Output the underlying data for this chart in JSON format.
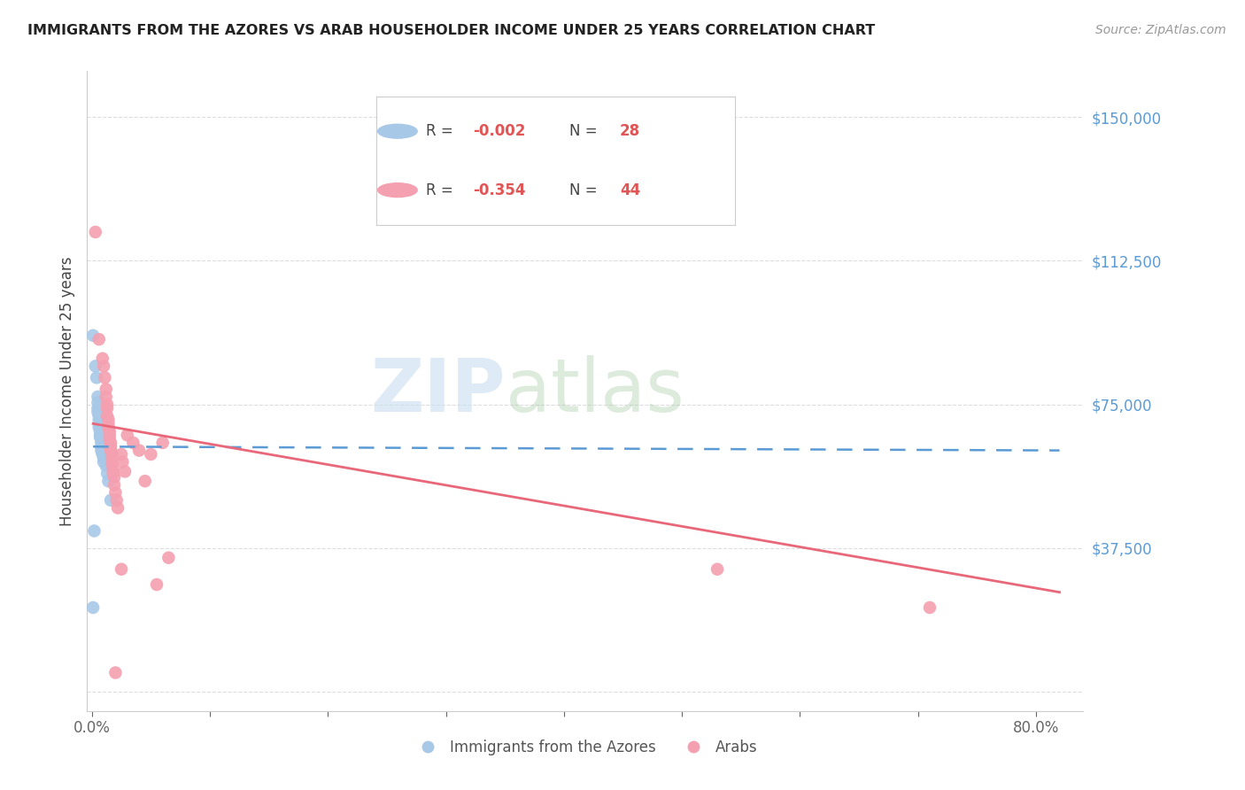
{
  "title": "IMMIGRANTS FROM THE AZORES VS ARAB HOUSEHOLDER INCOME UNDER 25 YEARS CORRELATION CHART",
  "source": "Source: ZipAtlas.com",
  "ylabel": "Householder Income Under 25 years",
  "ytick_values": [
    0,
    37500,
    75000,
    112500,
    150000
  ],
  "ytick_labels": [
    "",
    "$37,500",
    "$75,000",
    "$112,500",
    "$150,000"
  ],
  "ylim": [
    -5000,
    162000
  ],
  "xlim": [
    -0.004,
    0.84
  ],
  "azores_color": "#a8c8e8",
  "arab_color": "#f4a0b0",
  "azores_line_color": "#5b9bd5",
  "arab_line_color": "#e8687a",
  "grid_color": "#dddddd",
  "watermark_zip": "ZIP",
  "watermark_atlas": "atlas",
  "azores_points": [
    [
      0.001,
      93000
    ],
    [
      0.003,
      85000
    ],
    [
      0.004,
      82000
    ],
    [
      0.005,
      77000
    ],
    [
      0.005,
      75500
    ],
    [
      0.005,
      74000
    ],
    [
      0.005,
      73000
    ],
    [
      0.006,
      72000
    ],
    [
      0.006,
      71000
    ],
    [
      0.006,
      70000
    ],
    [
      0.006,
      69000
    ],
    [
      0.007,
      68000
    ],
    [
      0.007,
      67000
    ],
    [
      0.007,
      66500
    ],
    [
      0.008,
      66000
    ],
    [
      0.008,
      65000
    ],
    [
      0.008,
      64000
    ],
    [
      0.008,
      63000
    ],
    [
      0.009,
      62500
    ],
    [
      0.009,
      62000
    ],
    [
      0.01,
      61000
    ],
    [
      0.01,
      60000
    ],
    [
      0.012,
      59000
    ],
    [
      0.013,
      57000
    ],
    [
      0.014,
      55000
    ],
    [
      0.016,
      50000
    ],
    [
      0.002,
      42000
    ],
    [
      0.001,
      22000
    ]
  ],
  "arab_points": [
    [
      0.003,
      120000
    ],
    [
      0.006,
      92000
    ],
    [
      0.009,
      87000
    ],
    [
      0.01,
      85000
    ],
    [
      0.011,
      82000
    ],
    [
      0.012,
      79000
    ],
    [
      0.012,
      77000
    ],
    [
      0.013,
      75000
    ],
    [
      0.013,
      74000
    ],
    [
      0.013,
      72000
    ],
    [
      0.014,
      71000
    ],
    [
      0.014,
      70000
    ],
    [
      0.014,
      69000
    ],
    [
      0.015,
      68000
    ],
    [
      0.015,
      67000
    ],
    [
      0.015,
      66000
    ],
    [
      0.016,
      65000
    ],
    [
      0.016,
      64000
    ],
    [
      0.016,
      63000
    ],
    [
      0.017,
      62000
    ],
    [
      0.017,
      61000
    ],
    [
      0.017,
      59500
    ],
    [
      0.018,
      58000
    ],
    [
      0.018,
      57000
    ],
    [
      0.019,
      56000
    ],
    [
      0.019,
      54000
    ],
    [
      0.02,
      52000
    ],
    [
      0.021,
      50000
    ],
    [
      0.022,
      48000
    ],
    [
      0.025,
      62000
    ],
    [
      0.026,
      60000
    ],
    [
      0.028,
      57500
    ],
    [
      0.03,
      67000
    ],
    [
      0.035,
      65000
    ],
    [
      0.04,
      63000
    ],
    [
      0.045,
      55000
    ],
    [
      0.05,
      62000
    ],
    [
      0.055,
      28000
    ],
    [
      0.06,
      65000
    ],
    [
      0.065,
      35000
    ],
    [
      0.02,
      5000
    ],
    [
      0.53,
      32000
    ],
    [
      0.71,
      22000
    ],
    [
      0.025,
      32000
    ]
  ],
  "azores_trend_x": [
    0.001,
    0.82
  ],
  "azores_trend_y": [
    64000,
    63000
  ],
  "arab_trend_x": [
    0.001,
    0.82
  ],
  "arab_trend_y": [
    70000,
    26000
  ]
}
